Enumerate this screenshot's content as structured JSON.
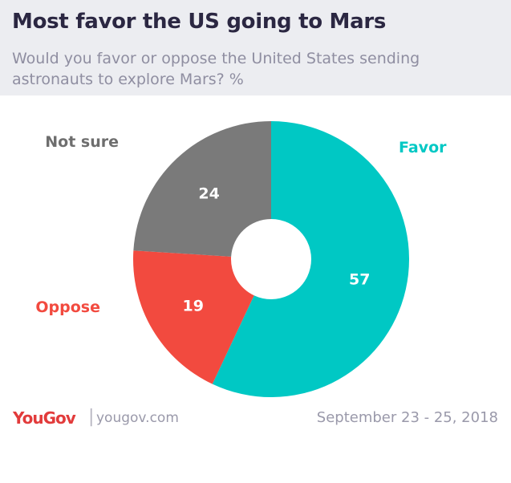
{
  "header": {
    "title": "Most favor the US going to Mars",
    "subtitle": "Would you favor or oppose the United States sending astronauts to explore Mars? %"
  },
  "footer": {
    "logo": "YouGov",
    "separator": "|",
    "site": "yougov.com",
    "date": "September 23 - 25, 2018"
  },
  "chart_data": {
    "type": "pie",
    "donut": true,
    "title": "Most favor the US going to Mars",
    "subtitle": "Would you favor or oppose the United States sending astronauts to explore Mars? %",
    "categories": [
      "Favor",
      "Oppose",
      "Not sure"
    ],
    "values": [
      57,
      19,
      24
    ],
    "colors": [
      "#00c8c4",
      "#f24a3f",
      "#7a7a7a"
    ],
    "label_colors": [
      "#00c8c4",
      "#f24a3f",
      "#6e6e6e"
    ],
    "value_label_color": "#ffffff",
    "start": "12 o'clock",
    "direction": "clockwise"
  }
}
